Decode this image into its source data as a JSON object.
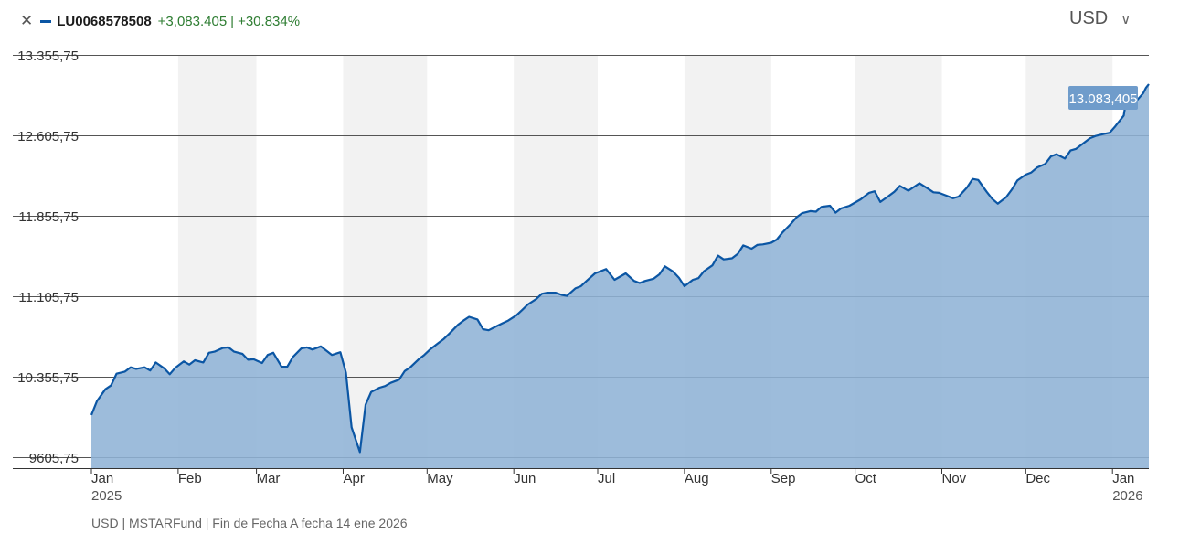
{
  "legend": {
    "close_icon": "close-icon",
    "ticker": "LU0068578508",
    "change_abs": "+3,083.405",
    "separator": "|",
    "change_pct": "+30.834%",
    "line_color": "#0b56a4"
  },
  "currency": {
    "selected": "USD",
    "icon": "chevron-down-icon"
  },
  "footer": {
    "currency": "USD",
    "source": "MSTARFund",
    "note": "Fin de Fecha A fecha 14 ene 2026"
  },
  "chart_data": {
    "type": "area",
    "y_ticks": [
      9605.75,
      10355.75,
      11105.75,
      11855.75,
      12605.75,
      13355.75
    ],
    "y_tick_labels": [
      "9605,75",
      "10.355,75",
      "11.105,75",
      "11.855,75",
      "12.605,75",
      "13.355,75"
    ],
    "ylim": [
      9505,
      13355.75
    ],
    "x_ticks": [
      {
        "date": "2025-01-01",
        "label": "Jan",
        "sub": "2025"
      },
      {
        "date": "2025-02-01",
        "label": "Feb",
        "sub": ""
      },
      {
        "date": "2025-03-01",
        "label": "Mar",
        "sub": ""
      },
      {
        "date": "2025-04-01",
        "label": "Apr",
        "sub": ""
      },
      {
        "date": "2025-05-01",
        "label": "May",
        "sub": ""
      },
      {
        "date": "2025-06-01",
        "label": "Jun",
        "sub": ""
      },
      {
        "date": "2025-07-01",
        "label": "Jul",
        "sub": ""
      },
      {
        "date": "2025-08-01",
        "label": "Aug",
        "sub": ""
      },
      {
        "date": "2025-09-01",
        "label": "Sep",
        "sub": ""
      },
      {
        "date": "2025-10-01",
        "label": "Oct",
        "sub": ""
      },
      {
        "date": "2025-11-01",
        "label": "Nov",
        "sub": ""
      },
      {
        "date": "2025-12-01",
        "label": "Dec",
        "sub": ""
      },
      {
        "date": "2026-01-01",
        "label": "Jan",
        "sub": "2026"
      }
    ],
    "xlim": [
      "2025-01-01",
      "2026-01-14"
    ],
    "last_value_label": "13.083,405",
    "colors": {
      "line": "#0b56a4",
      "fill": "#8fb3d6",
      "band": "#f2f2f2",
      "grid": "#555555",
      "tag": "#6f9ccb"
    },
    "series": [
      {
        "points": [
          [
            "2025-01-01",
            10000
          ],
          [
            "2025-01-03",
            10130
          ],
          [
            "2025-01-06",
            10240
          ],
          [
            "2025-01-08",
            10275
          ],
          [
            "2025-01-10",
            10385
          ],
          [
            "2025-01-13",
            10405
          ],
          [
            "2025-01-15",
            10445
          ],
          [
            "2025-01-17",
            10430
          ],
          [
            "2025-01-20",
            10445
          ],
          [
            "2025-01-22",
            10415
          ],
          [
            "2025-01-24",
            10490
          ],
          [
            "2025-01-27",
            10435
          ],
          [
            "2025-01-29",
            10380
          ],
          [
            "2025-01-31",
            10440
          ],
          [
            "2025-02-03",
            10500
          ],
          [
            "2025-02-05",
            10470
          ],
          [
            "2025-02-07",
            10510
          ],
          [
            "2025-02-10",
            10490
          ],
          [
            "2025-02-12",
            10580
          ],
          [
            "2025-02-14",
            10590
          ],
          [
            "2025-02-17",
            10625
          ],
          [
            "2025-02-19",
            10630
          ],
          [
            "2025-02-21",
            10590
          ],
          [
            "2025-02-24",
            10570
          ],
          [
            "2025-02-26",
            10515
          ],
          [
            "2025-02-28",
            10520
          ],
          [
            "2025-03-03",
            10485
          ],
          [
            "2025-03-05",
            10560
          ],
          [
            "2025-03-07",
            10580
          ],
          [
            "2025-03-10",
            10450
          ],
          [
            "2025-03-12",
            10450
          ],
          [
            "2025-03-14",
            10540
          ],
          [
            "2025-03-17",
            10620
          ],
          [
            "2025-03-19",
            10630
          ],
          [
            "2025-03-21",
            10610
          ],
          [
            "2025-03-24",
            10640
          ],
          [
            "2025-03-26",
            10600
          ],
          [
            "2025-03-28",
            10560
          ],
          [
            "2025-03-31",
            10585
          ],
          [
            "2025-04-02",
            10395
          ],
          [
            "2025-04-04",
            9885
          ],
          [
            "2025-04-07",
            9655
          ],
          [
            "2025-04-09",
            10095
          ],
          [
            "2025-04-11",
            10215
          ],
          [
            "2025-04-14",
            10255
          ],
          [
            "2025-04-16",
            10270
          ],
          [
            "2025-04-18",
            10300
          ],
          [
            "2025-04-21",
            10330
          ],
          [
            "2025-04-23",
            10410
          ],
          [
            "2025-04-25",
            10445
          ],
          [
            "2025-04-28",
            10520
          ],
          [
            "2025-04-30",
            10560
          ],
          [
            "2025-05-02",
            10610
          ],
          [
            "2025-05-05",
            10670
          ],
          [
            "2025-05-07",
            10710
          ],
          [
            "2025-05-09",
            10760
          ],
          [
            "2025-05-12",
            10840
          ],
          [
            "2025-05-14",
            10880
          ],
          [
            "2025-05-16",
            10915
          ],
          [
            "2025-05-19",
            10890
          ],
          [
            "2025-05-21",
            10800
          ],
          [
            "2025-05-23",
            10790
          ],
          [
            "2025-05-26",
            10830
          ],
          [
            "2025-05-28",
            10855
          ],
          [
            "2025-05-30",
            10880
          ],
          [
            "2025-06-02",
            10930
          ],
          [
            "2025-06-04",
            10980
          ],
          [
            "2025-06-06",
            11030
          ],
          [
            "2025-06-09",
            11080
          ],
          [
            "2025-06-11",
            11130
          ],
          [
            "2025-06-13",
            11140
          ],
          [
            "2025-06-16",
            11140
          ],
          [
            "2025-06-18",
            11120
          ],
          [
            "2025-06-20",
            11110
          ],
          [
            "2025-06-23",
            11180
          ],
          [
            "2025-06-25",
            11200
          ],
          [
            "2025-06-27",
            11250
          ],
          [
            "2025-06-30",
            11320
          ],
          [
            "2025-07-02",
            11340
          ],
          [
            "2025-07-04",
            11360
          ],
          [
            "2025-07-07",
            11260
          ],
          [
            "2025-07-09",
            11290
          ],
          [
            "2025-07-11",
            11320
          ],
          [
            "2025-07-14",
            11250
          ],
          [
            "2025-07-16",
            11230
          ],
          [
            "2025-07-18",
            11250
          ],
          [
            "2025-07-21",
            11270
          ],
          [
            "2025-07-23",
            11310
          ],
          [
            "2025-07-25",
            11385
          ],
          [
            "2025-07-28",
            11335
          ],
          [
            "2025-07-30",
            11280
          ],
          [
            "2025-08-01",
            11200
          ],
          [
            "2025-08-04",
            11260
          ],
          [
            "2025-08-06",
            11275
          ],
          [
            "2025-08-08",
            11340
          ],
          [
            "2025-08-11",
            11395
          ],
          [
            "2025-08-13",
            11485
          ],
          [
            "2025-08-15",
            11450
          ],
          [
            "2025-08-18",
            11460
          ],
          [
            "2025-08-20",
            11500
          ],
          [
            "2025-08-22",
            11580
          ],
          [
            "2025-08-25",
            11550
          ],
          [
            "2025-08-27",
            11585
          ],
          [
            "2025-08-29",
            11590
          ],
          [
            "2025-09-01",
            11605
          ],
          [
            "2025-09-03",
            11635
          ],
          [
            "2025-09-05",
            11700
          ],
          [
            "2025-09-08",
            11780
          ],
          [
            "2025-09-10",
            11840
          ],
          [
            "2025-09-12",
            11880
          ],
          [
            "2025-09-15",
            11900
          ],
          [
            "2025-09-17",
            11895
          ],
          [
            "2025-09-19",
            11940
          ],
          [
            "2025-09-22",
            11950
          ],
          [
            "2025-09-24",
            11885
          ],
          [
            "2025-09-26",
            11925
          ],
          [
            "2025-09-29",
            11950
          ],
          [
            "2025-10-01",
            11980
          ],
          [
            "2025-10-03",
            12010
          ],
          [
            "2025-10-06",
            12070
          ],
          [
            "2025-10-08",
            12085
          ],
          [
            "2025-10-10",
            11985
          ],
          [
            "2025-10-13",
            12040
          ],
          [
            "2025-10-15",
            12080
          ],
          [
            "2025-10-17",
            12135
          ],
          [
            "2025-10-20",
            12090
          ],
          [
            "2025-10-22",
            12125
          ],
          [
            "2025-10-24",
            12160
          ],
          [
            "2025-10-27",
            12110
          ],
          [
            "2025-10-29",
            12075
          ],
          [
            "2025-10-31",
            12070
          ],
          [
            "2025-11-03",
            12040
          ],
          [
            "2025-11-05",
            12020
          ],
          [
            "2025-11-07",
            12035
          ],
          [
            "2025-11-10",
            12120
          ],
          [
            "2025-11-12",
            12200
          ],
          [
            "2025-11-14",
            12190
          ],
          [
            "2025-11-17",
            12080
          ],
          [
            "2025-11-19",
            12015
          ],
          [
            "2025-11-21",
            11970
          ],
          [
            "2025-11-24",
            12030
          ],
          [
            "2025-11-26",
            12100
          ],
          [
            "2025-11-28",
            12185
          ],
          [
            "2025-12-01",
            12240
          ],
          [
            "2025-12-03",
            12260
          ],
          [
            "2025-12-05",
            12305
          ],
          [
            "2025-12-08",
            12340
          ],
          [
            "2025-12-10",
            12410
          ],
          [
            "2025-12-12",
            12430
          ],
          [
            "2025-12-15",
            12390
          ],
          [
            "2025-12-17",
            12465
          ],
          [
            "2025-12-19",
            12480
          ],
          [
            "2025-12-22",
            12540
          ],
          [
            "2025-12-24",
            12580
          ],
          [
            "2025-12-26",
            12600
          ],
          [
            "2025-12-29",
            12620
          ],
          [
            "2025-12-31",
            12630
          ],
          [
            "2026-01-02",
            12690
          ],
          [
            "2026-01-05",
            12790
          ],
          [
            "2026-01-06",
            12950
          ],
          [
            "2026-01-07",
            12920
          ],
          [
            "2026-01-08",
            12985
          ],
          [
            "2026-01-09",
            12910
          ],
          [
            "2026-01-12",
            13000
          ],
          [
            "2026-01-13",
            13050
          ],
          [
            "2026-01-14",
            13083.405
          ]
        ]
      }
    ]
  }
}
